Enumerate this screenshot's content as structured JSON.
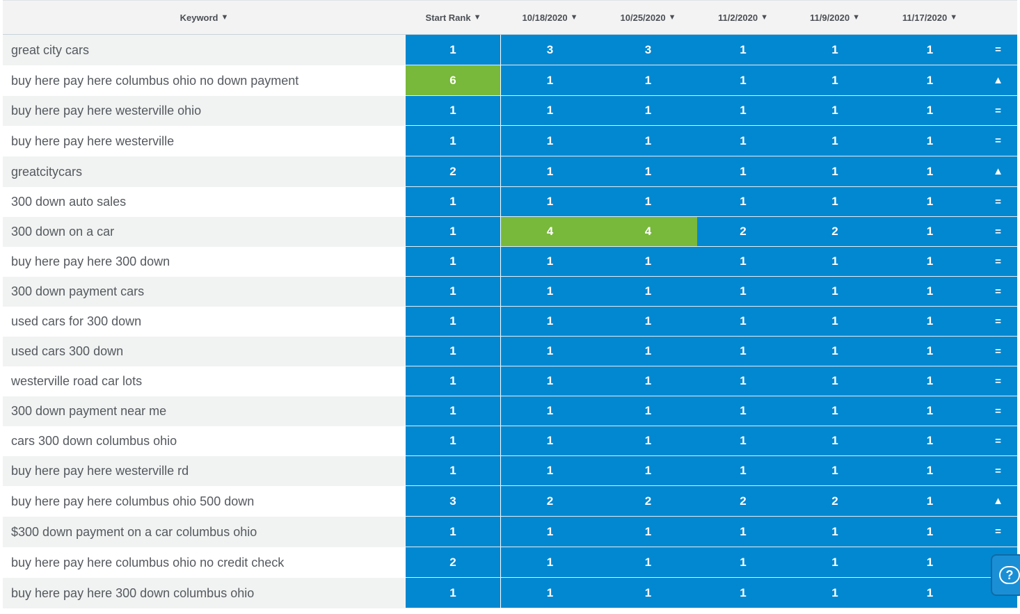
{
  "columns": {
    "keyword": "Keyword",
    "start_rank": "Start Rank",
    "dates": [
      "10/18/2020",
      "10/25/2020",
      "11/2/2020",
      "11/9/2020",
      "11/17/2020"
    ],
    "sort_caret": "▼"
  },
  "colors": {
    "rank_cell": "#0288d1",
    "improved_cell": "#78b83a",
    "header_bg": "#f3f3f3"
  },
  "rows": [
    {
      "keyword": "great city cars",
      "start": "1",
      "ranks": [
        "3",
        "3",
        "1",
        "1",
        "1"
      ],
      "trend": "=",
      "green": []
    },
    {
      "keyword": "buy here pay here columbus ohio no down payment",
      "start": "6",
      "ranks": [
        "1",
        "1",
        "1",
        "1",
        "1"
      ],
      "trend": "▲",
      "green": [
        "start"
      ]
    },
    {
      "keyword": "buy here pay here westerville ohio",
      "start": "1",
      "ranks": [
        "1",
        "1",
        "1",
        "1",
        "1"
      ],
      "trend": "=",
      "green": []
    },
    {
      "keyword": "buy here pay here westerville",
      "start": "1",
      "ranks": [
        "1",
        "1",
        "1",
        "1",
        "1"
      ],
      "trend": "=",
      "green": []
    },
    {
      "keyword": "greatcitycars",
      "start": "2",
      "ranks": [
        "1",
        "1",
        "1",
        "1",
        "1"
      ],
      "trend": "▲",
      "green": []
    },
    {
      "keyword": "300 down auto sales",
      "start": "1",
      "ranks": [
        "1",
        "1",
        "1",
        "1",
        "1"
      ],
      "trend": "=",
      "green": []
    },
    {
      "keyword": "300 down on a car",
      "start": "1",
      "ranks": [
        "4",
        "4",
        "2",
        "2",
        "1"
      ],
      "trend": "=",
      "green": [
        0,
        1
      ]
    },
    {
      "keyword": "buy here pay here 300 down",
      "start": "1",
      "ranks": [
        "1",
        "1",
        "1",
        "1",
        "1"
      ],
      "trend": "=",
      "green": []
    },
    {
      "keyword": "300 down payment cars",
      "start": "1",
      "ranks": [
        "1",
        "1",
        "1",
        "1",
        "1"
      ],
      "trend": "=",
      "green": []
    },
    {
      "keyword": "used cars for 300 down",
      "start": "1",
      "ranks": [
        "1",
        "1",
        "1",
        "1",
        "1"
      ],
      "trend": "=",
      "green": []
    },
    {
      "keyword": "used cars 300 down",
      "start": "1",
      "ranks": [
        "1",
        "1",
        "1",
        "1",
        "1"
      ],
      "trend": "=",
      "green": []
    },
    {
      "keyword": "westerville road car lots",
      "start": "1",
      "ranks": [
        "1",
        "1",
        "1",
        "1",
        "1"
      ],
      "trend": "=",
      "green": []
    },
    {
      "keyword": "300 down payment near me",
      "start": "1",
      "ranks": [
        "1",
        "1",
        "1",
        "1",
        "1"
      ],
      "trend": "=",
      "green": []
    },
    {
      "keyword": "cars 300 down columbus ohio",
      "start": "1",
      "ranks": [
        "1",
        "1",
        "1",
        "1",
        "1"
      ],
      "trend": "=",
      "green": []
    },
    {
      "keyword": "buy here pay here westerville rd",
      "start": "1",
      "ranks": [
        "1",
        "1",
        "1",
        "1",
        "1"
      ],
      "trend": "=",
      "green": []
    },
    {
      "keyword": "buy here pay here columbus ohio 500 down",
      "start": "3",
      "ranks": [
        "2",
        "2",
        "2",
        "2",
        "1"
      ],
      "trend": "▲",
      "green": []
    },
    {
      "keyword": "$300 down payment on a car columbus ohio",
      "start": "1",
      "ranks": [
        "1",
        "1",
        "1",
        "1",
        "1"
      ],
      "trend": "=",
      "green": []
    },
    {
      "keyword": "buy here pay here columbus ohio no credit check",
      "start": "2",
      "ranks": [
        "1",
        "1",
        "1",
        "1",
        "1"
      ],
      "trend": "",
      "green": []
    },
    {
      "keyword": "buy here pay here 300 down columbus ohio",
      "start": "1",
      "ranks": [
        "1",
        "1",
        "1",
        "1",
        "1"
      ],
      "trend": "",
      "green": []
    }
  ],
  "help_button": {
    "icon": "help-chat-icon",
    "glyph": "?"
  }
}
